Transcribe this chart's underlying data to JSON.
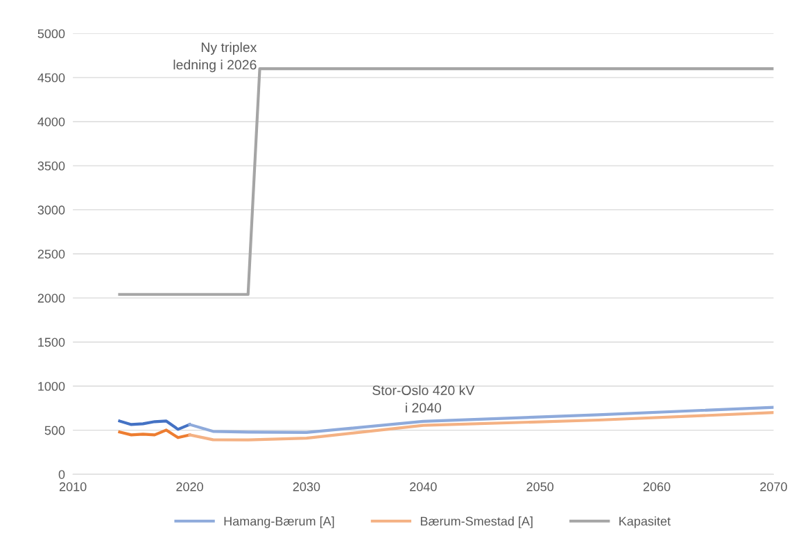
{
  "chart_data": {
    "type": "line",
    "xlim": [
      2010,
      2070
    ],
    "xticks": [
      2010,
      2020,
      2030,
      2040,
      2050,
      2060,
      2070
    ],
    "ylim": [
      0,
      5000
    ],
    "yticks": [
      0,
      500,
      1000,
      1500,
      2000,
      2500,
      3000,
      3500,
      4000,
      4500,
      5000
    ],
    "grid": "y",
    "legend": "bottom",
    "marker": "none",
    "line_style": "solid",
    "series": [
      {
        "color": "#4472c4",
        "x": [
          2014,
          2015,
          2016,
          2017,
          2018,
          2019,
          2020
        ],
        "values": [
          604,
          565,
          573,
          597,
          604,
          510,
          565
        ]
      },
      {
        "color": "#ed7d31",
        "x": [
          2014,
          2015,
          2016,
          2017,
          2018,
          2019,
          2020
        ],
        "values": [
          479,
          447,
          455,
          447,
          502,
          416,
          447
        ]
      },
      {
        "name": "Hamang-Bærum [A]",
        "color": "#8eaadb",
        "x": [
          2020,
          2022,
          2025,
          2030,
          2040,
          2055,
          2070
        ],
        "values": [
          565,
          487,
          479,
          475,
          600,
          675,
          760
        ]
      },
      {
        "name": "Bærum-Smestad [A]",
        "color": "#f4b183",
        "x": [
          2020,
          2022,
          2025,
          2030,
          2040,
          2055,
          2070
        ],
        "values": [
          447,
          392,
          390,
          410,
          555,
          615,
          700
        ]
      },
      {
        "name": "Kapasitet",
        "color": "#a5a5a5",
        "x": [
          2014,
          2025,
          2026,
          2070
        ],
        "values": [
          2040,
          2040,
          4600,
          4600
        ]
      }
    ],
    "annotations": [
      {
        "text": "Ny triplex\nledning i 2026",
        "x": 2026,
        "y": 4600
      },
      {
        "text": "Stor-Oslo 420 kV\ni 2040",
        "x": 2040,
        "y": 600
      }
    ]
  }
}
